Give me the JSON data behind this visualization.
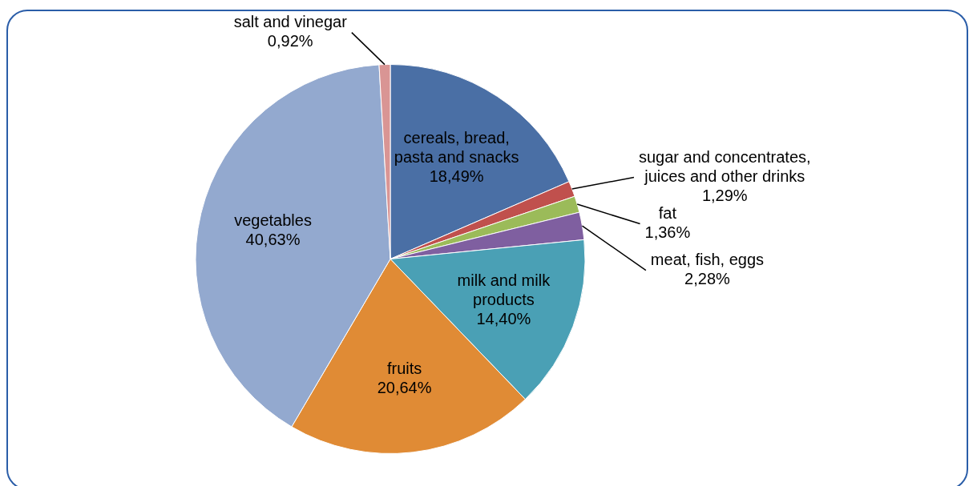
{
  "chart_data": {
    "type": "pie",
    "categories": [
      "cereals, bread, pasta and snacks",
      "sugar and concentrates, juices and other drinks",
      "fat",
      "meat, fish, eggs",
      "milk and milk products",
      "fruits",
      "vegetables",
      "salt and vinegar"
    ],
    "values": [
      18.49,
      1.29,
      1.36,
      2.28,
      14.4,
      20.64,
      40.63,
      0.92
    ],
    "value_labels": [
      "18,49%",
      "1,29%",
      "1,36%",
      "2,28%",
      "14,40%",
      "20,64%",
      "40,63%",
      "0,92%"
    ],
    "colors": [
      "#4a6fa5",
      "#c0504d",
      "#9bbb59",
      "#7f5fa0",
      "#4aa0b5",
      "#e08b35",
      "#93a9cf",
      "#d99594"
    ],
    "legend": false
  }
}
